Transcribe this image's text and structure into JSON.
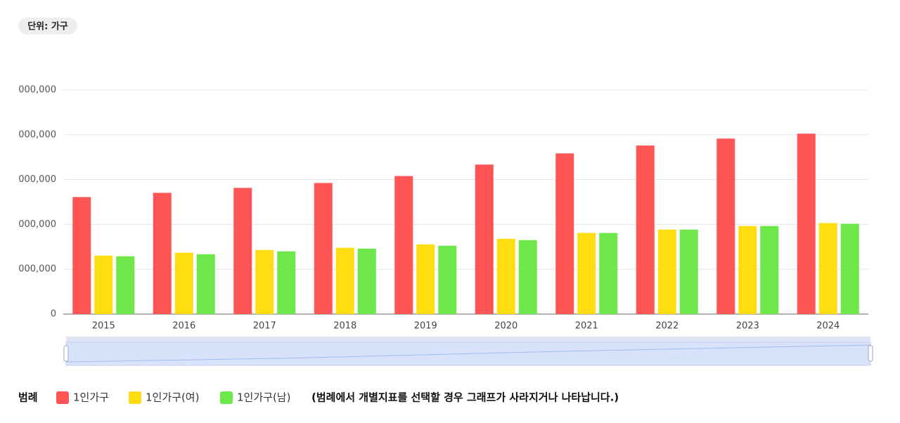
{
  "unit_label": "단위: 가구",
  "legend_title": "범례",
  "legend_note": "(범례에서 개별지표를 선택할 경우 그래프가 사라지거나 나타납니다.)",
  "chart_data": {
    "type": "bar",
    "categories": [
      "2015",
      "2016",
      "2017",
      "2018",
      "2019",
      "2020",
      "2021",
      "2022",
      "2023",
      "2024"
    ],
    "series": [
      {
        "name": "1인가구",
        "color": "#ff5555",
        "values": [
          5220000,
          5410000,
          5630000,
          5850000,
          6160000,
          6670000,
          7170000,
          7520000,
          7830000,
          8050000
        ]
      },
      {
        "name": "1인가구(여)",
        "color": "#ffdd11",
        "values": [
          2610000,
          2740000,
          2860000,
          2960000,
          3110000,
          3360000,
          3620000,
          3770000,
          3930000,
          4060000
        ]
      },
      {
        "name": "1인가구(남)",
        "color": "#6ee74a",
        "values": [
          2580000,
          2670000,
          2800000,
          2920000,
          3050000,
          3300000,
          3620000,
          3770000,
          3930000,
          4030000
        ]
      }
    ],
    "ylim": [
      0,
      10000000
    ],
    "yticks": [
      0,
      {
        "value": 2000000,
        "label": "000,000"
      },
      {
        "value": 4000000,
        "label": "000,000"
      },
      {
        "value": 6000000,
        "label": "000,000"
      },
      {
        "value": 8000000,
        "label": "000,000"
      },
      {
        "value": 10000000,
        "label": "000,000"
      }
    ],
    "grid": true
  }
}
